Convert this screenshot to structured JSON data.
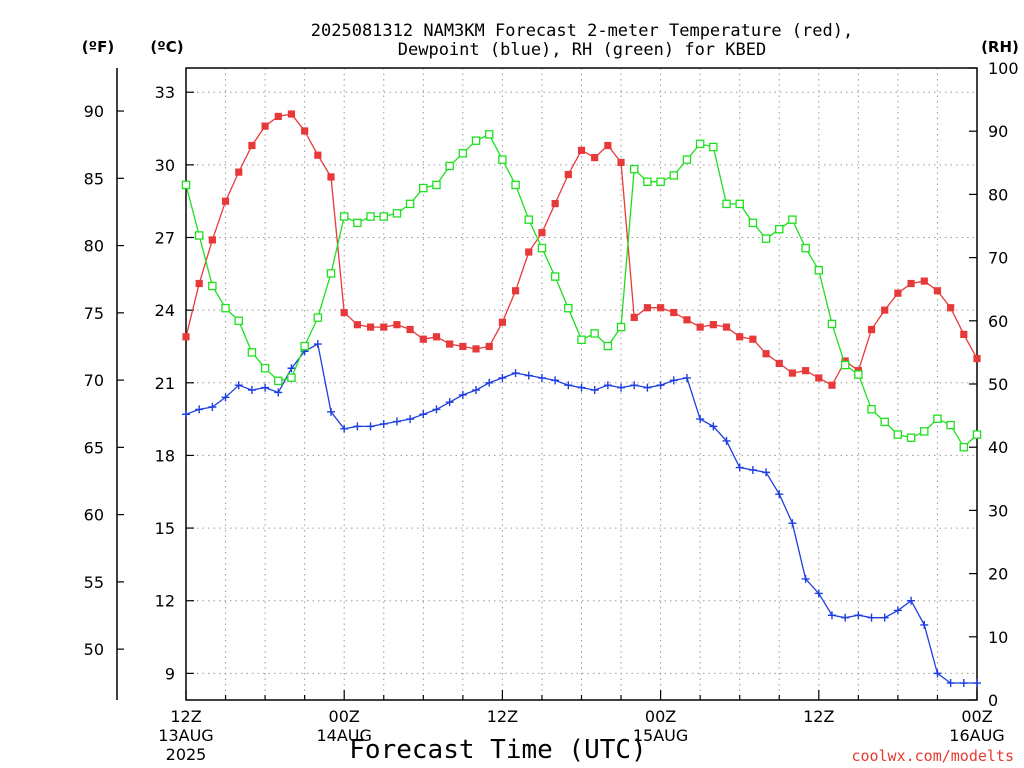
{
  "chart_data": {
    "type": "line",
    "title_lines": [
      "2025081312 NAM3KM Forecast 2-meter Temperature (red),",
      "Dewpoint (blue), RH (green) for KBED"
    ],
    "unit_labels": {
      "fahrenheit": "(ºF)",
      "celsius": "(ºC)",
      "rh": "(RH)"
    },
    "xlabel": "Forecast Time (UTC)",
    "credit": "coolwx.com/modelts",
    "x_range_hours": [
      0,
      60
    ],
    "x_ticks": [
      {
        "hour": 0,
        "lines": [
          "12Z",
          "13AUG",
          "2025"
        ]
      },
      {
        "hour": 12,
        "lines": [
          "00Z",
          "14AUG"
        ]
      },
      {
        "hour": 24,
        "lines": [
          "12Z"
        ]
      },
      {
        "hour": 36,
        "lines": [
          "00Z",
          "15AUG"
        ]
      },
      {
        "hour": 48,
        "lines": [
          "12Z"
        ]
      },
      {
        "hour": 60,
        "lines": [
          "00Z",
          "16AUG"
        ]
      }
    ],
    "celsius_axis": {
      "range": [
        7.9,
        34.0
      ],
      "ticks": [
        9,
        12,
        15,
        18,
        21,
        24,
        27,
        30,
        33
      ]
    },
    "fahrenheit_axis": {
      "ticks": [
        50,
        55,
        60,
        65,
        70,
        75,
        80,
        85,
        90
      ]
    },
    "rh_axis": {
      "range": [
        0,
        100
      ],
      "ticks": [
        0,
        10,
        20,
        30,
        40,
        50,
        60,
        70,
        80,
        90,
        100
      ]
    },
    "grid": true,
    "series": [
      {
        "name": "Temperature",
        "axis": "celsius",
        "color": "#e8393a",
        "marker": "filled-square",
        "x": [
          0,
          1,
          2,
          3,
          4,
          5,
          6,
          7,
          8,
          9,
          10,
          11,
          12,
          13,
          14,
          15,
          16,
          17,
          18,
          19,
          20,
          21,
          22,
          23,
          24,
          25,
          26,
          27,
          28,
          29,
          30,
          31,
          32,
          33,
          34,
          35,
          36,
          37,
          38,
          39,
          40,
          41,
          42,
          43,
          44,
          45,
          46,
          47,
          48,
          49,
          50,
          51,
          52,
          53,
          54,
          55,
          56,
          57,
          58,
          59,
          60
        ],
        "values": [
          22.9,
          25.1,
          26.9,
          28.5,
          29.7,
          30.8,
          31.6,
          32.0,
          32.1,
          31.4,
          30.4,
          29.5,
          23.9,
          23.4,
          23.3,
          23.3,
          23.4,
          23.2,
          22.8,
          22.9,
          22.6,
          22.5,
          22.4,
          22.5,
          23.5,
          24.8,
          26.4,
          27.2,
          28.4,
          29.6,
          30.6,
          30.3,
          30.8,
          30.1,
          23.7,
          24.1,
          24.1,
          23.9,
          23.6,
          23.3,
          23.4,
          23.3,
          22.9,
          22.8,
          22.2,
          21.8,
          21.4,
          21.5,
          21.2,
          20.9,
          21.9,
          21.5,
          23.2,
          24.0,
          24.7,
          25.1,
          25.2,
          24.8,
          24.1,
          23.0,
          22.0
        ]
      },
      {
        "name": "Dewpoint",
        "axis": "celsius",
        "color": "#1e3fe0",
        "marker": "plus",
        "x": [
          0,
          1,
          2,
          3,
          4,
          5,
          6,
          7,
          8,
          9,
          10,
          11,
          12,
          13,
          14,
          15,
          16,
          17,
          18,
          19,
          20,
          21,
          22,
          23,
          24,
          25,
          26,
          27,
          28,
          29,
          30,
          31,
          32,
          33,
          34,
          35,
          36,
          37,
          38,
          39,
          40,
          41,
          42,
          43,
          44,
          45,
          46,
          47,
          48,
          49,
          50,
          51,
          52,
          53,
          54,
          55,
          56,
          57,
          58,
          59,
          60
        ],
        "values": [
          19.7,
          19.9,
          20.0,
          20.4,
          20.9,
          20.7,
          20.8,
          20.6,
          21.6,
          22.3,
          22.6,
          19.8,
          19.1,
          19.2,
          19.2,
          19.3,
          19.4,
          19.5,
          19.7,
          19.9,
          20.2,
          20.5,
          20.7,
          21.0,
          21.2,
          21.4,
          21.3,
          21.2,
          21.1,
          20.9,
          20.8,
          20.7,
          20.9,
          20.8,
          20.9,
          20.8,
          20.9,
          21.1,
          21.2,
          19.5,
          19.2,
          18.6,
          17.5,
          17.4,
          17.3,
          16.4,
          15.2,
          12.9,
          12.3,
          11.4,
          11.3,
          11.4,
          11.3,
          11.3,
          11.6,
          12.0,
          11.0,
          9.0,
          8.6,
          8.6,
          8.6
        ]
      },
      {
        "name": "RH",
        "axis": "rh",
        "color": "#1ee01e",
        "marker": "open-square",
        "x": [
          0,
          1,
          2,
          3,
          4,
          5,
          6,
          7,
          8,
          9,
          10,
          11,
          12,
          13,
          14,
          15,
          16,
          17,
          18,
          19,
          20,
          21,
          22,
          23,
          24,
          25,
          26,
          27,
          28,
          29,
          30,
          31,
          32,
          33,
          34,
          35,
          36,
          37,
          38,
          39,
          40,
          41,
          42,
          43,
          44,
          45,
          46,
          47,
          48,
          49,
          50,
          51,
          52,
          53,
          54,
          55,
          56,
          57,
          58,
          59,
          60
        ],
        "values": [
          81.5,
          73.5,
          65.5,
          62.0,
          60.0,
          55.0,
          52.5,
          50.5,
          51.0,
          56.0,
          60.5,
          67.5,
          76.5,
          75.5,
          76.5,
          76.5,
          77.0,
          78.5,
          81.0,
          81.5,
          84.5,
          86.5,
          88.5,
          89.5,
          85.5,
          81.5,
          76.0,
          71.5,
          67.0,
          62.0,
          57.0,
          58.0,
          56.0,
          59.0,
          84.0,
          82.0,
          82.0,
          83.0,
          85.5,
          88.0,
          87.5,
          78.5,
          78.5,
          75.5,
          73.0,
          74.5,
          76.0,
          71.5,
          68.0,
          59.5,
          53.0,
          51.5,
          46.0,
          44.0,
          42.0,
          41.5,
          42.5,
          44.5,
          43.5,
          40.0,
          42.0
        ]
      }
    ]
  }
}
